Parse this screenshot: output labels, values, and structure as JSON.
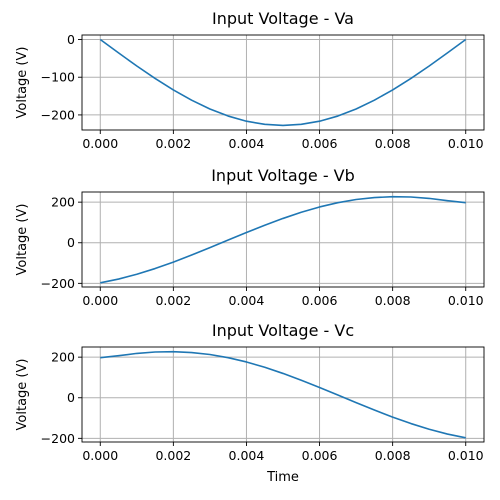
{
  "chart_data": [
    {
      "type": "line",
      "title": "Input Voltage - Va",
      "xlabel": "",
      "ylabel": "Voltage (V)",
      "xlim": [
        -0.0005,
        0.0105
      ],
      "ylim": [
        -240,
        12
      ],
      "xticks": [
        0,
        0.002,
        0.004,
        0.006,
        0.008,
        0.01
      ],
      "xtick_labels": [
        "0.000",
        "0.002",
        "0.004",
        "0.006",
        "0.008",
        "0.010"
      ],
      "yticks": [
        0,
        -100,
        -200
      ],
      "ytick_labels": [
        "0",
        "−100",
        "−200"
      ],
      "grid": true,
      "color": "#1f77b4",
      "x": [
        0,
        0.0005,
        0.001,
        0.0015,
        0.002,
        0.0025,
        0.003,
        0.0035,
        0.004,
        0.0045,
        0.005,
        0.0055,
        0.006,
        0.0065,
        0.007,
        0.0075,
        0.008,
        0.0085,
        0.009,
        0.0095,
        0.01
      ],
      "y": [
        0,
        -35.5,
        -70.2,
        -103.2,
        -133.6,
        -160.9,
        -184.3,
        -203.0,
        -216.7,
        -225.0,
        -227.8,
        -225.0,
        -216.7,
        -203.0,
        -184.3,
        -160.9,
        -133.6,
        -103.2,
        -70.2,
        -35.5,
        0
      ]
    },
    {
      "type": "line",
      "title": "Input Voltage - Vb",
      "xlabel": "",
      "ylabel": "Voltage (V)",
      "xlim": [
        -0.0005,
        0.0105
      ],
      "ylim": [
        -218,
        250
      ],
      "xticks": [
        0,
        0.002,
        0.004,
        0.006,
        0.008,
        0.01
      ],
      "xtick_labels": [
        "0.000",
        "0.002",
        "0.004",
        "0.006",
        "0.008",
        "0.010"
      ],
      "yticks": [
        200,
        0,
        -200
      ],
      "ytick_labels": [
        "200",
        "0",
        "−200"
      ],
      "grid": true,
      "color": "#1f77b4",
      "x": [
        0,
        0.0005,
        0.001,
        0.0015,
        0.002,
        0.0025,
        0.003,
        0.0035,
        0.004,
        0.0045,
        0.005,
        0.0055,
        0.006,
        0.0065,
        0.007,
        0.0075,
        0.008,
        0.0085,
        0.009,
        0.0095,
        0.01
      ],
      "y": [
        -197.3,
        -179.0,
        -155.3,
        -127.1,
        -95.2,
        -60.5,
        -23.8,
        13.6,
        50.4,
        86.3,
        119.8,
        150.1,
        176.3,
        197.4,
        213.0,
        222.6,
        226.9,
        225.4,
        218.5,
        207.0,
        197.3
      ]
    },
    {
      "type": "line",
      "title": "Input Voltage - Vc",
      "xlabel": "Time",
      "ylabel": "Voltage (V)",
      "xlim": [
        -0.0005,
        0.0105
      ],
      "ylim": [
        -218,
        250
      ],
      "xticks": [
        0,
        0.002,
        0.004,
        0.006,
        0.008,
        0.01
      ],
      "xtick_labels": [
        "0.000",
        "0.002",
        "0.004",
        "0.006",
        "0.008",
        "0.010"
      ],
      "yticks": [
        200,
        0,
        -200
      ],
      "ytick_labels": [
        "200",
        "0",
        "−200"
      ],
      "grid": true,
      "color": "#1f77b4",
      "x": [
        0,
        0.0005,
        0.001,
        0.0015,
        0.002,
        0.0025,
        0.003,
        0.0035,
        0.004,
        0.0045,
        0.005,
        0.0055,
        0.006,
        0.0065,
        0.007,
        0.0075,
        0.008,
        0.0085,
        0.009,
        0.0095,
        0.01
      ],
      "y": [
        197.3,
        207.0,
        218.5,
        225.4,
        226.9,
        222.6,
        213.0,
        197.4,
        176.3,
        150.1,
        119.8,
        86.3,
        50.4,
        13.6,
        -23.8,
        -60.5,
        -95.2,
        -127.1,
        -155.3,
        -179.0,
        -197.3
      ]
    }
  ]
}
